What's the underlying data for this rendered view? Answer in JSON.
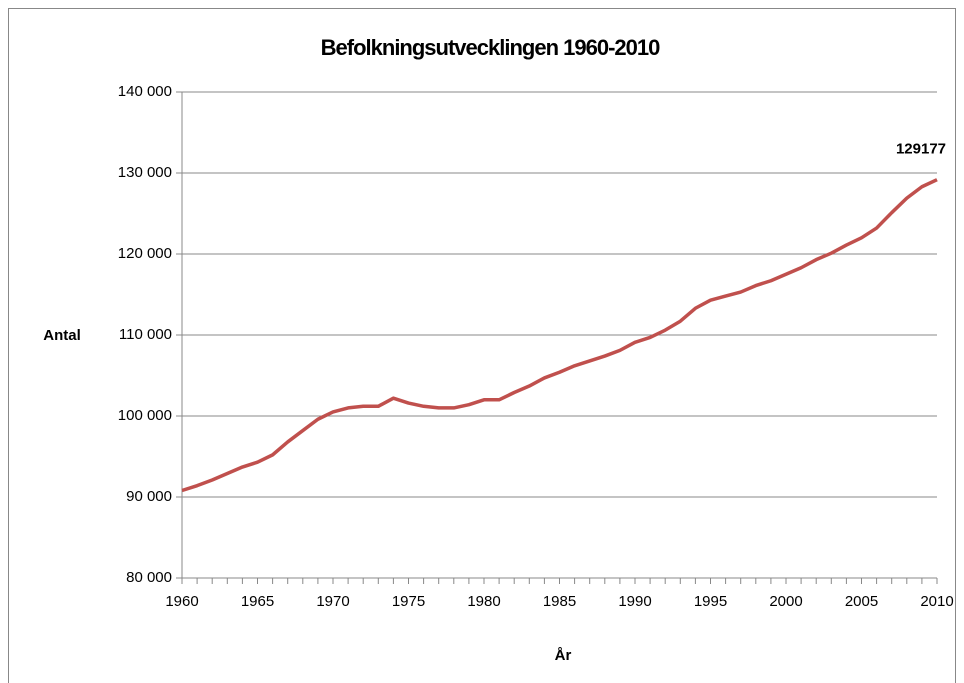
{
  "chart_data": {
    "type": "line",
    "title": "Befolkningsutvecklingen 1960-2010",
    "xlabel": "År",
    "ylabel": "Antal",
    "x": [
      1960,
      1961,
      1962,
      1963,
      1964,
      1965,
      1966,
      1967,
      1968,
      1969,
      1970,
      1971,
      1972,
      1973,
      1974,
      1975,
      1976,
      1977,
      1978,
      1979,
      1980,
      1981,
      1982,
      1983,
      1984,
      1985,
      1986,
      1987,
      1988,
      1989,
      1990,
      1991,
      1992,
      1993,
      1994,
      1995,
      1996,
      1997,
      1998,
      1999,
      2000,
      2001,
      2002,
      2003,
      2004,
      2005,
      2006,
      2007,
      2008,
      2009,
      2010
    ],
    "series": [
      {
        "name": "Antal",
        "color": "#c0504d",
        "values": [
          90800,
          91400,
          92100,
          92900,
          93700,
          94300,
          95200,
          96800,
          98200,
          99600,
          100500,
          101000,
          101200,
          101200,
          102200,
          101600,
          101200,
          101000,
          101000,
          101400,
          102000,
          102000,
          102900,
          103700,
          104700,
          105400,
          106200,
          106800,
          107400,
          108100,
          109100,
          109700,
          110600,
          111700,
          113300,
          114300,
          114800,
          115300,
          116100,
          116700,
          117500,
          118300,
          119300,
          120100,
          121100,
          122000,
          123200,
          125100,
          126900,
          128300,
          129177
        ]
      }
    ],
    "xlim": [
      1960,
      2010
    ],
    "xticks": [
      1960,
      1965,
      1970,
      1975,
      1980,
      1985,
      1990,
      1995,
      2000,
      2005,
      2010
    ],
    "ylim": [
      80000,
      140000
    ],
    "yticks": [
      {
        "value": 80000,
        "label": "80 000"
      },
      {
        "value": 90000,
        "label": "90 000"
      },
      {
        "value": 100000,
        "label": "100 000"
      },
      {
        "value": 110000,
        "label": "110 000"
      },
      {
        "value": 120000,
        "label": "120 000"
      },
      {
        "value": 130000,
        "label": "130 000"
      },
      {
        "value": 140000,
        "label": "140 000"
      }
    ],
    "grid": true
  }
}
